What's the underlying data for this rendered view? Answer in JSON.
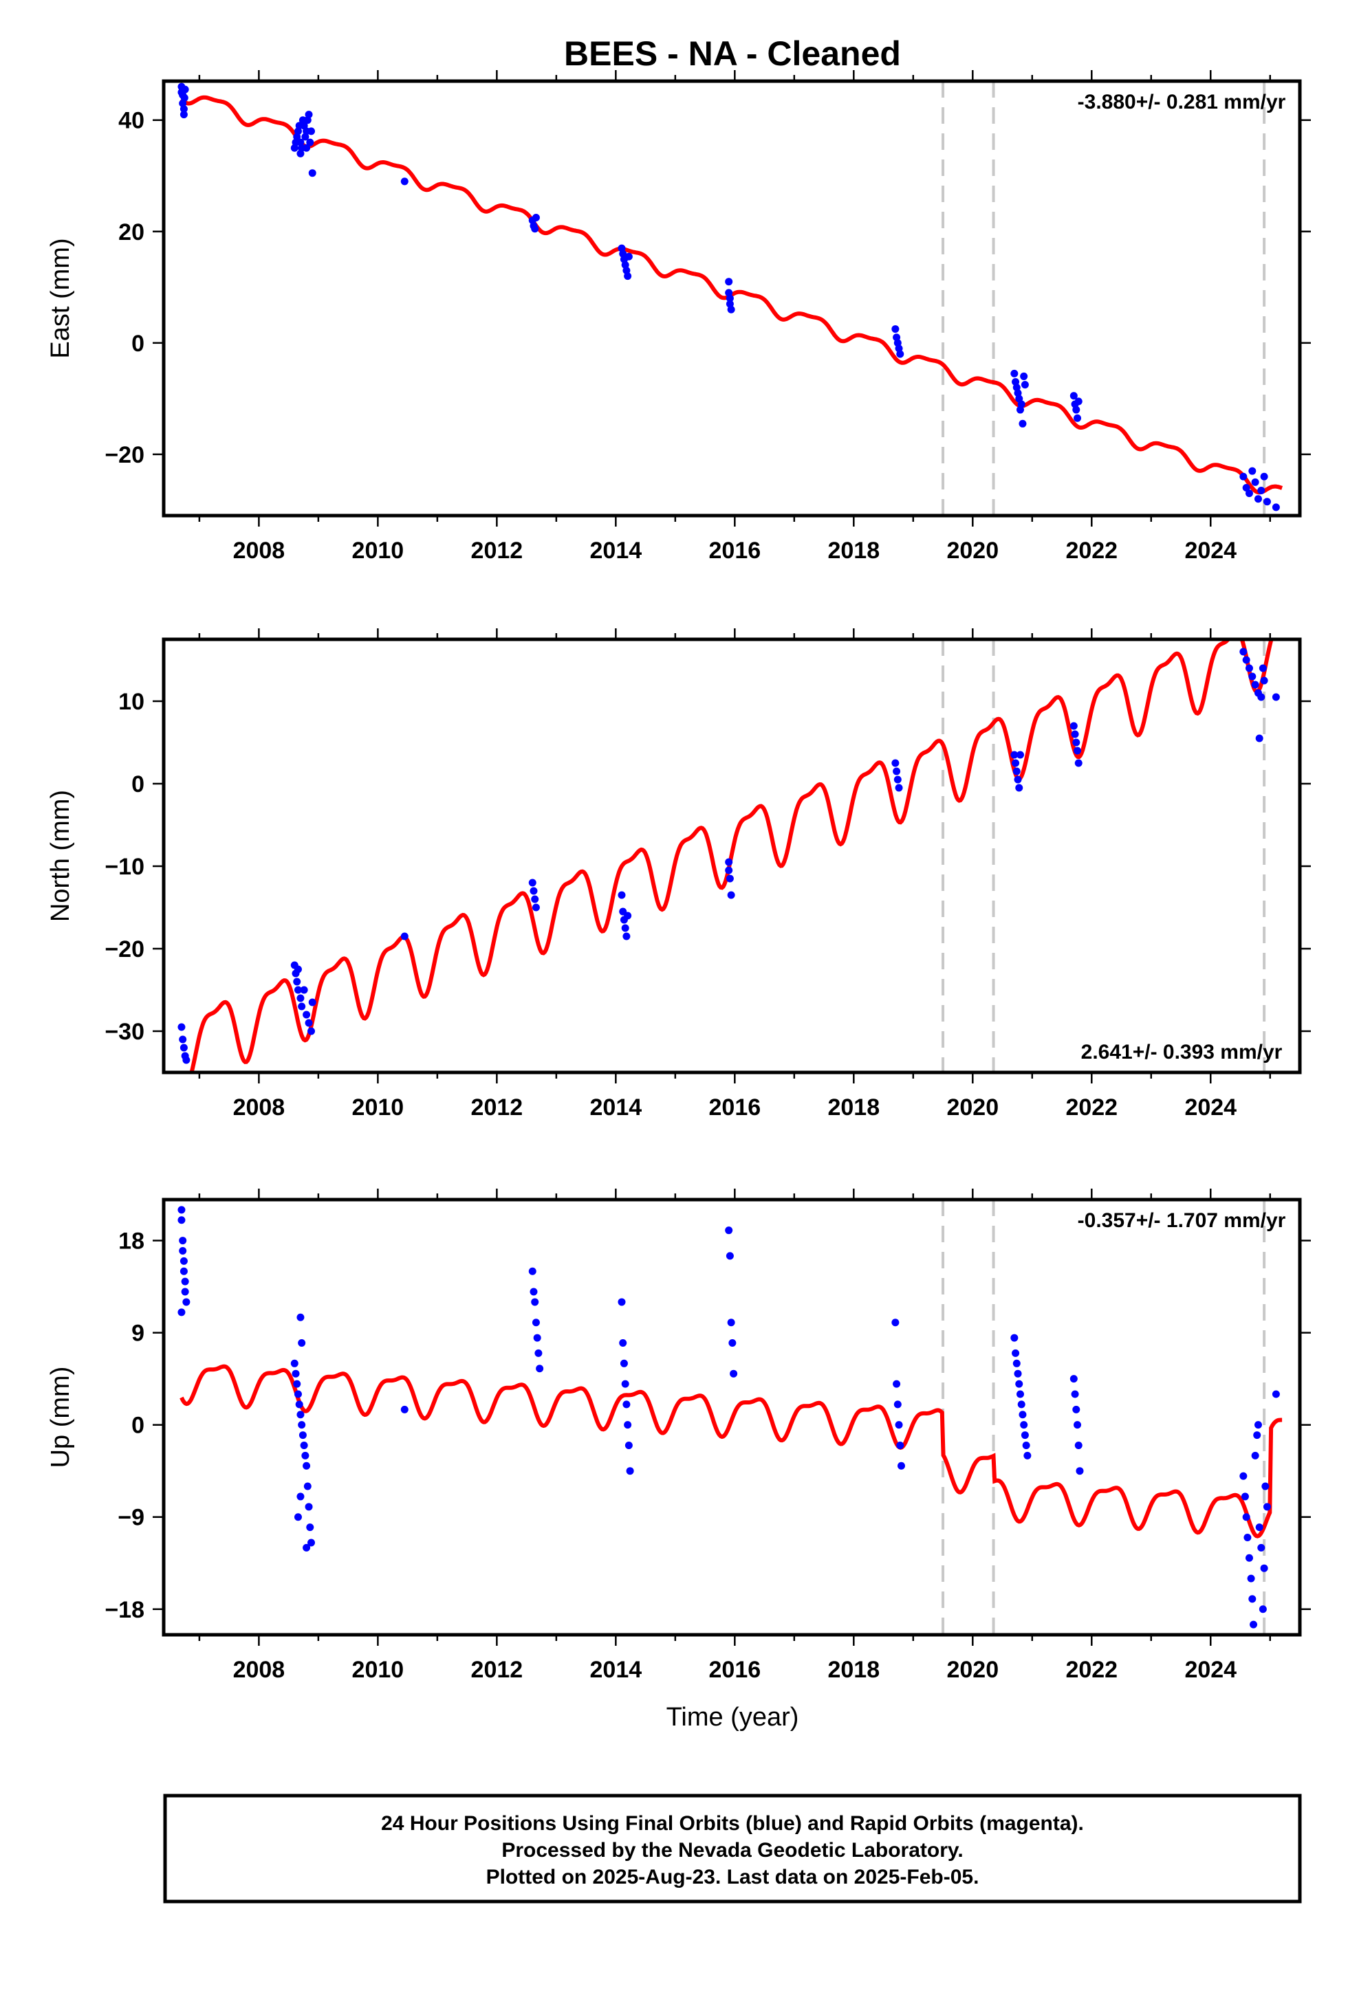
{
  "title": "BEES  - NA - Cleaned",
  "colors": {
    "data": "#0000ff",
    "model": "#ff0000",
    "break": "#c8c8c8",
    "frame": "#000000"
  },
  "xlabel": "Time (year)",
  "footer": {
    "line1": "24 Hour Positions Using Final Orbits (blue) and Rapid Orbits (magenta).",
    "line2": "Processed by the Nevada Geodetic Laboratory.",
    "line3": "Plotted on 2025-Aug-23. Last data on 2025-Feb-05."
  },
  "chart_data": [
    {
      "type": "scatter",
      "panel": "east",
      "ylabel": "East (mm)",
      "xlim": [
        2006.4,
        2025.5
      ],
      "ylim": [
        -31,
        47
      ],
      "xticks": [
        2008,
        2010,
        2012,
        2014,
        2016,
        2018,
        2020,
        2022,
        2024
      ],
      "yticks": [
        40,
        20,
        0,
        -20
      ],
      "ytick_labels": [
        "40",
        "20",
        "0",
        "−20"
      ],
      "rate_label": "-3.880+/- 0.281 mm/yr",
      "rate_position": "top-right",
      "breaks": [
        2019.5,
        2020.35,
        2024.9
      ],
      "model": {
        "rate": -3.88,
        "intercept": 45.0,
        "t0": 2006.7,
        "amplitude": 1.2,
        "offsets": []
      },
      "series": [
        {
          "kind": "points",
          "values": [
            [
              2006.7,
              46
            ],
            [
              2006.7,
              45
            ],
            [
              2006.72,
              44.5
            ],
            [
              2006.72,
              43
            ],
            [
              2006.74,
              42
            ],
            [
              2006.74,
              41
            ],
            [
              2006.75,
              44
            ],
            [
              2006.76,
              45.5
            ],
            [
              2008.6,
              35
            ],
            [
              2008.62,
              36
            ],
            [
              2008.64,
              37
            ],
            [
              2008.66,
              38
            ],
            [
              2008.68,
              39
            ],
            [
              2008.7,
              36
            ],
            [
              2008.72,
              35
            ],
            [
              2008.74,
              40
            ],
            [
              2008.76,
              39
            ],
            [
              2008.78,
              37
            ],
            [
              2008.8,
              38
            ],
            [
              2008.82,
              40
            ],
            [
              2008.84,
              41
            ],
            [
              2008.86,
              36
            ],
            [
              2008.88,
              38
            ],
            [
              2008.9,
              30.5
            ],
            [
              2008.7,
              34
            ],
            [
              2008.8,
              35
            ],
            [
              2010.45,
              29
            ],
            [
              2012.6,
              22
            ],
            [
              2012.62,
              21
            ],
            [
              2012.64,
              20.5
            ],
            [
              2012.66,
              22.5
            ],
            [
              2014.1,
              17
            ],
            [
              2014.12,
              16
            ],
            [
              2014.14,
              15
            ],
            [
              2014.16,
              14
            ],
            [
              2014.18,
              13
            ],
            [
              2014.2,
              12
            ],
            [
              2014.22,
              15.5
            ],
            [
              2015.9,
              11
            ],
            [
              2015.9,
              9
            ],
            [
              2015.92,
              8
            ],
            [
              2015.92,
              7
            ],
            [
              2015.94,
              6
            ],
            [
              2018.7,
              2.5
            ],
            [
              2018.72,
              1
            ],
            [
              2018.74,
              0
            ],
            [
              2018.76,
              -1
            ],
            [
              2018.78,
              -2
            ],
            [
              2020.7,
              -5.5
            ],
            [
              2020.72,
              -7
            ],
            [
              2020.74,
              -8
            ],
            [
              2020.76,
              -9
            ],
            [
              2020.78,
              -10
            ],
            [
              2020.8,
              -12
            ],
            [
              2020.82,
              -11
            ],
            [
              2020.84,
              -14.5
            ],
            [
              2020.86,
              -6
            ],
            [
              2020.88,
              -7.5
            ],
            [
              2021.7,
              -9.5
            ],
            [
              2021.72,
              -11
            ],
            [
              2021.74,
              -12
            ],
            [
              2021.76,
              -13.5
            ],
            [
              2021.78,
              -10.5
            ],
            [
              2024.55,
              -24
            ],
            [
              2024.6,
              -26
            ],
            [
              2024.65,
              -27
            ],
            [
              2024.7,
              -23
            ],
            [
              2024.75,
              -25
            ],
            [
              2024.8,
              -28
            ],
            [
              2024.85,
              -26.5
            ],
            [
              2024.9,
              -24
            ],
            [
              2024.95,
              -28.5
            ],
            [
              2025.1,
              -29.5
            ]
          ]
        }
      ]
    },
    {
      "type": "scatter",
      "panel": "north",
      "ylabel": "North (mm)",
      "xlim": [
        2006.4,
        2025.5
      ],
      "ylim": [
        -35,
        17.5
      ],
      "xticks": [
        2008,
        2010,
        2012,
        2014,
        2016,
        2018,
        2020,
        2022,
        2024
      ],
      "yticks": [
        10,
        0,
        -10,
        -20,
        -30
      ],
      "ytick_labels": [
        "10",
        "0",
        "−10",
        "−20",
        "−30"
      ],
      "rate_label": "2.641+/- 0.393 mm/yr",
      "rate_position": "bottom-right",
      "breaks": [
        2019.5,
        2020.35,
        2024.9
      ],
      "model": {
        "rate": 2.641,
        "intercept": -31.5,
        "t0": 2006.7,
        "amplitude": 3.8,
        "offsets": []
      },
      "series": [
        {
          "kind": "points",
          "values": [
            [
              2006.7,
              -29.5
            ],
            [
              2006.72,
              -31
            ],
            [
              2006.74,
              -32
            ],
            [
              2006.76,
              -33
            ],
            [
              2006.78,
              -33.5
            ],
            [
              2008.6,
              -22
            ],
            [
              2008.62,
              -23
            ],
            [
              2008.64,
              -24
            ],
            [
              2008.66,
              -25
            ],
            [
              2008.7,
              -26
            ],
            [
              2008.72,
              -27
            ],
            [
              2008.76,
              -25
            ],
            [
              2008.8,
              -28
            ],
            [
              2008.84,
              -29
            ],
            [
              2008.88,
              -30
            ],
            [
              2008.9,
              -26.5
            ],
            [
              2008.66,
              -22.5
            ],
            [
              2010.45,
              -18.5
            ],
            [
              2012.6,
              -12
            ],
            [
              2012.62,
              -13
            ],
            [
              2012.64,
              -14
            ],
            [
              2012.66,
              -15
            ],
            [
              2014.1,
              -13.5
            ],
            [
              2014.12,
              -15.5
            ],
            [
              2014.14,
              -16.5
            ],
            [
              2014.16,
              -17.5
            ],
            [
              2014.18,
              -18.5
            ],
            [
              2014.2,
              -16
            ],
            [
              2015.9,
              -9.5
            ],
            [
              2015.9,
              -10.5
            ],
            [
              2015.92,
              -11.5
            ],
            [
              2015.94,
              -13.5
            ],
            [
              2018.7,
              2.5
            ],
            [
              2018.72,
              1.5
            ],
            [
              2018.74,
              0.5
            ],
            [
              2018.76,
              -0.5
            ],
            [
              2020.7,
              3.5
            ],
            [
              2020.72,
              2.5
            ],
            [
              2020.74,
              1.5
            ],
            [
              2020.76,
              0.5
            ],
            [
              2020.78,
              -0.5
            ],
            [
              2020.8,
              3.5
            ],
            [
              2021.7,
              7
            ],
            [
              2021.72,
              6
            ],
            [
              2021.74,
              5
            ],
            [
              2021.76,
              4
            ],
            [
              2021.78,
              2.5
            ],
            [
              2024.55,
              16
            ],
            [
              2024.6,
              15
            ],
            [
              2024.65,
              14
            ],
            [
              2024.7,
              13
            ],
            [
              2024.75,
              12
            ],
            [
              2024.8,
              11
            ],
            [
              2024.85,
              10.5
            ],
            [
              2024.88,
              14
            ],
            [
              2024.9,
              12.5
            ],
            [
              2024.82,
              5.5
            ],
            [
              2025.1,
              10.5
            ]
          ]
        }
      ]
    },
    {
      "type": "scatter",
      "panel": "up",
      "ylabel": "Up (mm)",
      "xlim": [
        2006.4,
        2025.5
      ],
      "ylim": [
        -20.5,
        22
      ],
      "xticks": [
        2008,
        2010,
        2012,
        2014,
        2016,
        2018,
        2020,
        2022,
        2024
      ],
      "yticks": [
        18,
        9,
        0,
        -9,
        -18
      ],
      "ytick_labels": [
        "18",
        "9",
        "0",
        "−9",
        "−18"
      ],
      "rate_label": "-0.357+/- 1.707 mm/yr",
      "rate_position": "top-right",
      "breaks": [
        2019.5,
        2020.35,
        2024.9
      ],
      "model": {
        "rate": -0.357,
        "intercept": 4.5,
        "t0": 2006.7,
        "amplitude": 1.8,
        "offsets": [
          [
            2019.5,
            -4
          ],
          [
            2020.35,
            -2.5
          ],
          [
            2025.0,
            8
          ]
        ]
      },
      "series": [
        {
          "kind": "points",
          "values": [
            [
              2006.7,
              21
            ],
            [
              2006.7,
              20
            ],
            [
              2006.72,
              18
            ],
            [
              2006.72,
              17
            ],
            [
              2006.74,
              16
            ],
            [
              2006.74,
              15
            ],
            [
              2006.76,
              14
            ],
            [
              2006.76,
              13
            ],
            [
              2006.78,
              12
            ],
            [
              2006.7,
              11
            ],
            [
              2008.6,
              6
            ],
            [
              2008.62,
              5
            ],
            [
              2008.64,
              4
            ],
            [
              2008.66,
              3
            ],
            [
              2008.68,
              2
            ],
            [
              2008.7,
              1
            ],
            [
              2008.72,
              0
            ],
            [
              2008.74,
              -1
            ],
            [
              2008.76,
              -2
            ],
            [
              2008.78,
              -3
            ],
            [
              2008.8,
              -4
            ],
            [
              2008.82,
              -6
            ],
            [
              2008.84,
              -8
            ],
            [
              2008.86,
              -10
            ],
            [
              2008.88,
              -11.5
            ],
            [
              2008.7,
              10.5
            ],
            [
              2008.72,
              8
            ],
            [
              2008.66,
              -9
            ],
            [
              2008.7,
              -7
            ],
            [
              2008.8,
              -12
            ],
            [
              2010.45,
              1.5
            ],
            [
              2012.6,
              15
            ],
            [
              2012.62,
              13
            ],
            [
              2012.64,
              12
            ],
            [
              2012.66,
              10
            ],
            [
              2012.68,
              8.5
            ],
            [
              2012.7,
              7
            ],
            [
              2012.72,
              5.5
            ],
            [
              2014.1,
              12
            ],
            [
              2014.12,
              8
            ],
            [
              2014.14,
              6
            ],
            [
              2014.16,
              4
            ],
            [
              2014.18,
              2
            ],
            [
              2014.2,
              0
            ],
            [
              2014.22,
              -2
            ],
            [
              2014.24,
              -4.5
            ],
            [
              2015.9,
              19
            ],
            [
              2015.92,
              16.5
            ],
            [
              2015.94,
              10
            ],
            [
              2015.96,
              8
            ],
            [
              2015.98,
              5
            ],
            [
              2018.7,
              10
            ],
            [
              2018.72,
              4
            ],
            [
              2018.74,
              2
            ],
            [
              2018.76,
              0
            ],
            [
              2018.78,
              -2
            ],
            [
              2018.8,
              -4
            ],
            [
              2020.7,
              8.5
            ],
            [
              2020.72,
              7
            ],
            [
              2020.74,
              6
            ],
            [
              2020.76,
              5
            ],
            [
              2020.78,
              4
            ],
            [
              2020.8,
              3
            ],
            [
              2020.82,
              2
            ],
            [
              2020.84,
              1
            ],
            [
              2020.86,
              0
            ],
            [
              2020.88,
              -1
            ],
            [
              2020.9,
              -2
            ],
            [
              2020.92,
              -3
            ],
            [
              2021.7,
              4.5
            ],
            [
              2021.72,
              3
            ],
            [
              2021.74,
              1.5
            ],
            [
              2021.76,
              0
            ],
            [
              2021.78,
              -2
            ],
            [
              2021.8,
              -4.5
            ],
            [
              2024.55,
              -5
            ],
            [
              2024.58,
              -7
            ],
            [
              2024.6,
              -9
            ],
            [
              2024.62,
              -11
            ],
            [
              2024.65,
              -13
            ],
            [
              2024.68,
              -15
            ],
            [
              2024.7,
              -17
            ],
            [
              2024.72,
              -19.5
            ],
            [
              2024.75,
              -3
            ],
            [
              2024.78,
              -1
            ],
            [
              2024.8,
              0
            ],
            [
              2024.82,
              -10
            ],
            [
              2024.85,
              -12
            ],
            [
              2024.88,
              -18
            ],
            [
              2024.9,
              -14
            ],
            [
              2024.92,
              -6
            ],
            [
              2024.95,
              -8
            ],
            [
              2025.1,
              3
            ]
          ]
        }
      ]
    }
  ]
}
